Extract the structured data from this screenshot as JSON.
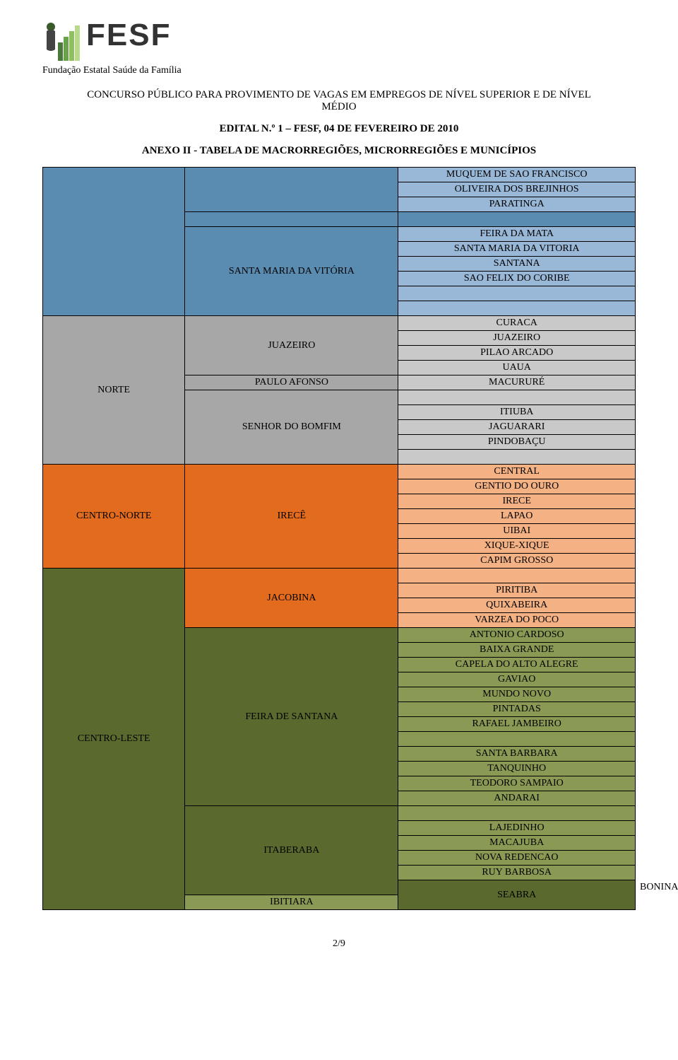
{
  "header": {
    "org_abbrev": "FESF",
    "org_full": "Fundação Estatal Saúde da Família",
    "title_line1": "CONCURSO PÚBLICO PARA PROVIMENTO DE VAGAS EM EMPREGOS DE NÍVEL SUPERIOR E DE NÍVEL",
    "title_line2": "MÉDIO",
    "edital": "EDITAL N.º 1 – FESF, 04 DE FEVEREIRO DE 2010",
    "anexo": "ANEXO II - TABELA DE MACRORREGIÕES, MICRORREGIÕES E MUNICÍPIOS"
  },
  "page": "2/9",
  "colors": {
    "blue_dark": "#5a8bb0",
    "blue_light": "#99b7d6",
    "gray_dark": "#a7a7a7",
    "gray_light": "#c9c9c9",
    "orange_dark": "#e26b1e",
    "orange_light": "#f3b184",
    "olive_dark": "#5a6a2f",
    "olive_light": "#8a9a55",
    "white": "#ffffff"
  },
  "logo_colors": {
    "bar1": "#4a7a3a",
    "bar2": "#6aa24a",
    "bar3": "#8fc060",
    "bar4": "#b9d98a",
    "head": "#3a5a2a"
  },
  "rows": [
    {
      "c1": {
        "span": 10,
        "color": "blue_dark"
      },
      "c2": {
        "span": 3,
        "color": "blue_dark"
      },
      "c3": {
        "text": "MUQUEM DE SAO FRANCISCO",
        "color": "blue_light"
      }
    },
    {
      "c3": {
        "text": "OLIVEIRA DOS BREJINHOS",
        "color": "blue_light"
      }
    },
    {
      "c3": {
        "text": "PARATINGA",
        "color": "blue_light"
      }
    },
    {
      "c2": {
        "span": 1,
        "color": "blue_dark",
        "spacer": true
      },
      "c3": {
        "color": "blue_dark",
        "spacer": true
      }
    },
    {
      "c2": {
        "span": 6,
        "color": "blue_dark",
        "text": "SANTA MARIA DA VITÓRIA"
      },
      "c3": {
        "text": "FEIRA DA MATA",
        "color": "blue_light"
      }
    },
    {
      "c3": {
        "text": "SANTA MARIA DA VITORIA",
        "color": "blue_light"
      }
    },
    {
      "c3": {
        "text": "SANTANA",
        "color": "blue_light"
      }
    },
    {
      "c3": {
        "text": "SAO FELIX DO CORIBE",
        "color": "blue_light"
      }
    },
    {
      "c3": {
        "color": "blue_light",
        "spacer": true
      }
    },
    {
      "c3": {
        "color": "blue_light",
        "spacer": true
      }
    },
    {
      "c1": {
        "span": 10,
        "text": "NORTE",
        "color": "gray_dark"
      },
      "c2": {
        "span": 4,
        "text": "JUAZEIRO",
        "color": "gray_dark"
      },
      "c3": {
        "text": "CURACA",
        "color": "gray_light"
      }
    },
    {
      "c3": {
        "text": "JUAZEIRO",
        "color": "gray_light"
      }
    },
    {
      "c3": {
        "text": "PILAO ARCADO",
        "color": "gray_light"
      }
    },
    {
      "c3": {
        "text": "UAUA",
        "color": "gray_light"
      }
    },
    {
      "c2": {
        "span": 1,
        "text": "PAULO AFONSO",
        "color": "gray_dark"
      },
      "c3": {
        "text": "MACURURÉ",
        "color": "gray_light"
      }
    },
    {
      "c2": {
        "span": 5,
        "color": "gray_dark",
        "text": "SENHOR DO BOMFIM"
      },
      "c3": {
        "color": "gray_light",
        "spacer": true
      }
    },
    {
      "c3": {
        "text": "ITIUBA",
        "color": "gray_light"
      }
    },
    {
      "c3": {
        "text": "JAGUARARI",
        "color": "gray_light"
      }
    },
    {
      "c3": {
        "text": "PINDOBAÇU",
        "color": "gray_light"
      }
    },
    {
      "c3": {
        "color": "gray_light",
        "spacer": true
      }
    },
    {
      "c1": {
        "span": 7,
        "text": "CENTRO-NORTE",
        "color": "orange_dark"
      },
      "c2": {
        "span": 7,
        "text": "IRECÊ",
        "color": "orange_dark"
      },
      "c3": {
        "text": "CENTRAL",
        "color": "orange_light"
      }
    },
    {
      "c3": {
        "text": "GENTIO DO OURO",
        "color": "orange_light"
      }
    },
    {
      "c3": {
        "text": "IRECE",
        "color": "orange_light"
      }
    },
    {
      "c3": {
        "text": "LAPAO",
        "color": "orange_light"
      }
    },
    {
      "c3": {
        "text": "UIBAI",
        "color": "orange_light"
      }
    },
    {
      "c3": {
        "text": "XIQUE-XIQUE",
        "color": "orange_light"
      }
    },
    {
      "c3": {
        "text": "CAPIM GROSSO",
        "color": "orange_light"
      }
    },
    {
      "c1": {
        "span": 24,
        "text": "CENTRO-LESTE",
        "color": "olive_dark"
      },
      "c2": {
        "span": 4,
        "text": "JACOBINA",
        "color": "orange_dark"
      },
      "c3": {
        "color": "orange_light",
        "spacer": true
      }
    },
    {
      "c3": {
        "text": "PIRITIBA",
        "color": "orange_light"
      }
    },
    {
      "c3": {
        "text": "QUIXABEIRA",
        "color": "orange_light"
      }
    },
    {
      "c3": {
        "text": "VARZEA DO POCO",
        "color": "orange_light"
      }
    },
    {
      "c2": {
        "span": 12,
        "text": "FEIRA DE SANTANA",
        "color": "olive_dark"
      },
      "c3": {
        "text": "ANTONIO CARDOSO",
        "color": "olive_light"
      }
    },
    {
      "c3": {
        "text": "BAIXA GRANDE",
        "color": "olive_light"
      }
    },
    {
      "c3": {
        "text": "CAPELA DO ALTO ALEGRE",
        "color": "olive_light"
      }
    },
    {
      "c3": {
        "text": "GAVIAO",
        "color": "olive_light"
      }
    },
    {
      "c3": {
        "text": "MUNDO NOVO",
        "color": "olive_light"
      }
    },
    {
      "c3": {
        "text": "PINTADAS",
        "color": "olive_light"
      }
    },
    {
      "c3": {
        "text": "RAFAEL JAMBEIRO",
        "color": "olive_light"
      }
    },
    {
      "c3": {
        "color": "olive_light",
        "spacer": true
      }
    },
    {
      "c3": {
        "text": "SANTA BARBARA",
        "color": "olive_light"
      }
    },
    {
      "c3": {
        "text": "TANQUINHO",
        "color": "olive_light"
      }
    },
    {
      "c3": {
        "text": "TEODORO SAMPAIO",
        "color": "olive_light"
      }
    },
    {
      "c3": {
        "text": "ANDARAI",
        "color": "olive_light"
      }
    },
    {
      "c2": {
        "span": 6,
        "text": "ITABERABA",
        "color": "olive_dark"
      },
      "c3": {
        "color": "olive_light",
        "spacer": true
      }
    },
    {
      "c3": {
        "text": "LAJEDINHO",
        "color": "olive_light"
      }
    },
    {
      "c3": {
        "text": "MACAJUBA",
        "color": "olive_light"
      }
    },
    {
      "c3": {
        "text": "NOVA REDENCAO",
        "color": "olive_light"
      }
    },
    {
      "c3": {
        "text": "RUY BARBOSA",
        "color": "olive_light"
      }
    },
    {
      "c3": {
        "text": "BONINAL",
        "color": "olive_light"
      }
    },
    {
      "c2": {
        "span": 2,
        "text": "SEABRA",
        "color": "olive_dark"
      },
      "c3": {
        "color": "olive_light",
        "spacer": true,
        "hidden": true
      }
    },
    {
      "c3": {
        "text": "IBITIARA",
        "color": "olive_light"
      }
    }
  ]
}
